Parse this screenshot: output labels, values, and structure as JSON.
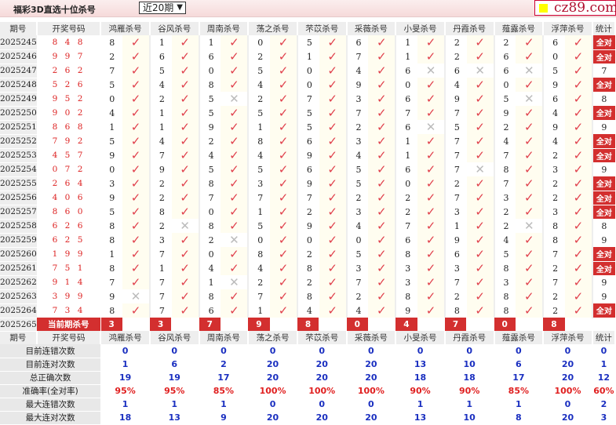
{
  "header": {
    "title": "福彩3D直选十位杀号",
    "period_select": "近20期",
    "logo_text": "cz89.com"
  },
  "columns": {
    "period": "期号",
    "winning": "开奖号码",
    "killers": [
      "鸿雁杀号",
      "谷风杀号",
      "周南杀号",
      "荡之杀号",
      "芣苡杀号",
      "采薇杀号",
      "小旻杀号",
      "丹霞杀号",
      "薤露杀号",
      "浮萍杀号"
    ],
    "stat": "统计"
  },
  "rows": [
    {
      "period": "2025245",
      "winning": "8 4 8",
      "kills": [
        8,
        1,
        1,
        0,
        5,
        6,
        1,
        2,
        2,
        6
      ],
      "miss": [],
      "stat": "全对"
    },
    {
      "period": "2025246",
      "winning": "9 9 7",
      "kills": [
        2,
        6,
        6,
        2,
        1,
        7,
        1,
        2,
        6,
        0
      ],
      "miss": [],
      "stat": "全对"
    },
    {
      "period": "2025247",
      "winning": "2 6 2",
      "kills": [
        7,
        5,
        0,
        5,
        0,
        4,
        6,
        6,
        6,
        5
      ],
      "miss": [
        6,
        7,
        8
      ],
      "stat": "7"
    },
    {
      "period": "2025248",
      "winning": "5 2 6",
      "kills": [
        5,
        4,
        8,
        4,
        0,
        9,
        0,
        4,
        0,
        9
      ],
      "miss": [],
      "stat": "全对"
    },
    {
      "period": "2025249",
      "winning": "9 5 2",
      "kills": [
        0,
        2,
        5,
        2,
        7,
        3,
        6,
        9,
        5,
        6
      ],
      "miss": [
        2,
        8
      ],
      "stat": "8"
    },
    {
      "period": "2025250",
      "winning": "9 0 2",
      "kills": [
        4,
        1,
        5,
        5,
        5,
        7,
        7,
        7,
        9,
        4
      ],
      "miss": [],
      "stat": "全对"
    },
    {
      "period": "2025251",
      "winning": "8 6 8",
      "kills": [
        1,
        1,
        9,
        1,
        5,
        2,
        6,
        5,
        2,
        9
      ],
      "miss": [
        6
      ],
      "stat": "9"
    },
    {
      "period": "2025252",
      "winning": "7 9 2",
      "kills": [
        5,
        4,
        2,
        8,
        6,
        3,
        1,
        7,
        4,
        4
      ],
      "miss": [],
      "stat": "全对"
    },
    {
      "period": "2025253",
      "winning": "4 5 7",
      "kills": [
        9,
        7,
        4,
        4,
        9,
        4,
        1,
        7,
        7,
        2
      ],
      "miss": [],
      "stat": "全对"
    },
    {
      "period": "2025254",
      "winning": "0 7 2",
      "kills": [
        0,
        9,
        5,
        5,
        6,
        5,
        6,
        7,
        8,
        3
      ],
      "miss": [
        7
      ],
      "stat": "9"
    },
    {
      "period": "2025255",
      "winning": "2 6 4",
      "kills": [
        3,
        2,
        8,
        3,
        9,
        5,
        0,
        2,
        7,
        2
      ],
      "miss": [],
      "stat": "全对"
    },
    {
      "period": "2025256",
      "winning": "4 0 6",
      "kills": [
        9,
        2,
        7,
        7,
        7,
        2,
        2,
        7,
        3,
        2
      ],
      "miss": [],
      "stat": "全对"
    },
    {
      "period": "2025257",
      "winning": "8 6 0",
      "kills": [
        5,
        8,
        0,
        1,
        2,
        3,
        2,
        3,
        2,
        3
      ],
      "miss": [],
      "stat": "全对"
    },
    {
      "period": "2025258",
      "winning": "6 2 6",
      "kills": [
        8,
        2,
        8,
        5,
        9,
        4,
        7,
        1,
        2,
        8
      ],
      "miss": [
        1,
        8
      ],
      "stat": "8"
    },
    {
      "period": "2025259",
      "winning": "6 2 5",
      "kills": [
        8,
        3,
        2,
        0,
        0,
        0,
        6,
        9,
        4,
        8
      ],
      "miss": [
        2
      ],
      "stat": "9"
    },
    {
      "period": "2025260",
      "winning": "1 9 9",
      "kills": [
        1,
        7,
        0,
        8,
        2,
        5,
        8,
        6,
        5,
        7
      ],
      "miss": [],
      "stat": "全对"
    },
    {
      "period": "2025261",
      "winning": "7 5 1",
      "kills": [
        8,
        1,
        4,
        4,
        8,
        3,
        3,
        3,
        8,
        2
      ],
      "miss": [],
      "stat": "全对"
    },
    {
      "period": "2025262",
      "winning": "9 1 4",
      "kills": [
        7,
        7,
        1,
        2,
        2,
        7,
        3,
        7,
        3,
        7
      ],
      "miss": [
        2
      ],
      "stat": "9"
    },
    {
      "period": "2025263",
      "winning": "3 9 9",
      "kills": [
        9,
        7,
        8,
        7,
        8,
        2,
        8,
        2,
        8,
        2
      ],
      "miss": [
        0
      ],
      "stat": "9"
    },
    {
      "period": "2025264",
      "winning": "7 3 4",
      "kills": [
        8,
        7,
        6,
        1,
        4,
        4,
        9,
        8,
        8,
        2
      ],
      "miss": [],
      "stat": "全对"
    }
  ],
  "current": {
    "period": "2025265",
    "label": "当前期杀号",
    "kills": [
      3,
      3,
      7,
      9,
      8,
      0,
      4,
      7,
      0,
      8
    ]
  },
  "stats": [
    {
      "label": "目前连错次数",
      "values": [
        "0",
        "0",
        "0",
        "0",
        "0",
        "0",
        "0",
        "0",
        "0",
        "0",
        "0"
      ]
    },
    {
      "label": "目前连对次数",
      "values": [
        "1",
        "6",
        "2",
        "20",
        "20",
        "20",
        "13",
        "10",
        "6",
        "20",
        "1"
      ]
    },
    {
      "label": "总正确次数",
      "values": [
        "19",
        "19",
        "17",
        "20",
        "20",
        "20",
        "18",
        "18",
        "17",
        "20",
        "12"
      ]
    },
    {
      "label": "准确率(全对率)",
      "values": [
        "95%",
        "95%",
        "85%",
        "100%",
        "100%",
        "100%",
        "90%",
        "90%",
        "85%",
        "100%",
        "60%"
      ],
      "percent": true
    },
    {
      "label": "最大连错次数",
      "values": [
        "1",
        "1",
        "1",
        "0",
        "0",
        "0",
        "1",
        "1",
        "1",
        "0",
        "2"
      ]
    },
    {
      "label": "最大连对次数",
      "values": [
        "18",
        "13",
        "9",
        "20",
        "20",
        "20",
        "13",
        "10",
        "8",
        "20",
        "3"
      ]
    }
  ],
  "colors": {
    "accent": "#d32f2f",
    "check": "#e0404c",
    "stat_value": "#1a2fc0"
  }
}
